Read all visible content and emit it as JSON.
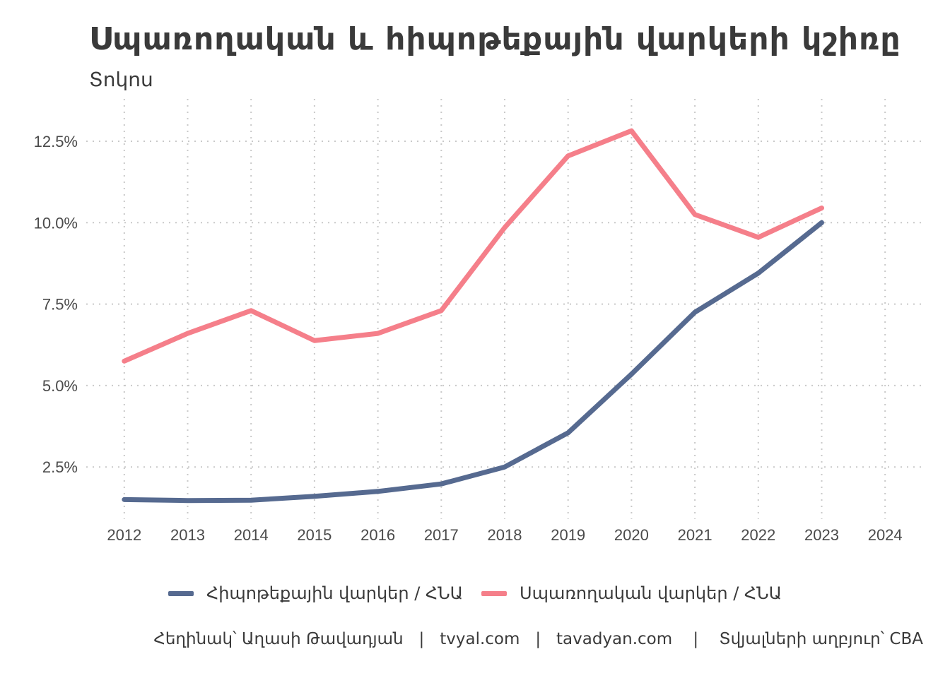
{
  "colors": {
    "mortgage": "#566a90",
    "consumer": "#f57f8a",
    "grid": "#c9c9c9"
  },
  "header": {
    "title": "Սպառողական և հիպոթեքային վարկերի կշիռը",
    "subtitle": "Տոկոս"
  },
  "legend": {
    "items": [
      {
        "label": "Հիպոթեքային վարկեր / ՀՆԱ"
      },
      {
        "label": "Սպառողական վարկեր / ՀՆԱ"
      }
    ]
  },
  "caption": "Հեղինակ՝ Աղասի Թավադյան   |   tvyal.com   |   tavadyan.com    |    Տվյալների աղբյուր՝ CBA",
  "chart_data": {
    "type": "line",
    "title": "Սպառողական և հիպոթեքային վարկերի կշիռը",
    "subtitle": "Տոկոս",
    "xlabel": "",
    "ylabel": "",
    "x": [
      2012,
      2013,
      2014,
      2015,
      2016,
      2017,
      2018,
      2019,
      2020,
      2021,
      2022,
      2023
    ],
    "x_ticks": [
      "2012",
      "2013",
      "2014",
      "2015",
      "2016",
      "2017",
      "2018",
      "2019",
      "2020",
      "2021",
      "2022",
      "2023",
      "2024"
    ],
    "y_ticks": [
      "2.5%",
      "5.0%",
      "7.5%",
      "10.0%",
      "12.5%"
    ],
    "xlim": [
      2011.4,
      2024.6
    ],
    "ylim": [
      0.9,
      13.8
    ],
    "grid": true,
    "legend_position": "bottom",
    "series": [
      {
        "name": "Հիպոթեքային վարկեր / ՀՆԱ",
        "color": "#566a90",
        "values": [
          1.5,
          1.47,
          1.48,
          1.6,
          1.75,
          1.98,
          2.5,
          3.55,
          5.35,
          7.25,
          8.45,
          10.0
        ]
      },
      {
        "name": "Սպառողական վարկեր / ՀՆԱ",
        "color": "#f57f8a",
        "values": [
          5.75,
          6.6,
          7.3,
          6.38,
          6.6,
          7.3,
          9.85,
          12.05,
          12.82,
          10.25,
          9.55,
          10.45
        ]
      }
    ]
  }
}
